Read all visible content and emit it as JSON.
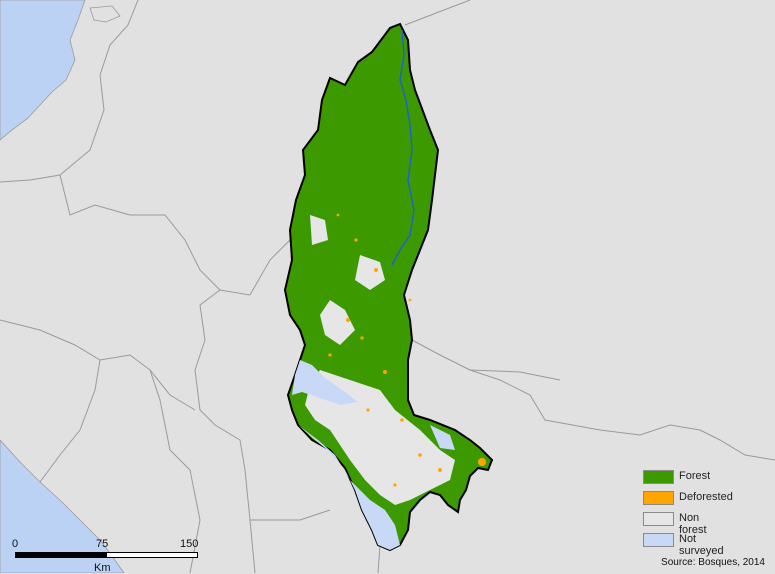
{
  "colors": {
    "background": "#e1e1e1",
    "sea": "#bcd2f5",
    "forest": "#3c9a00",
    "deforested": "#ffa500",
    "non_forest": "#e6e6e6",
    "not_surveyed": "#c8d9f8",
    "boundary": "#000000",
    "river": "#1f5fd6"
  },
  "legend": {
    "items": [
      {
        "label": "Forest",
        "color": "#3c9a00"
      },
      {
        "label": "Deforested",
        "color": "#ffa500"
      },
      {
        "label": "Non forest",
        "color": "#e6e6e6"
      },
      {
        "label": "Not surveyed",
        "color": "#c8d9f8"
      }
    ]
  },
  "scale": {
    "ticks": [
      "0",
      "75",
      "150"
    ],
    "unit": "Km"
  },
  "source": "Source: Bosques, 2014"
}
